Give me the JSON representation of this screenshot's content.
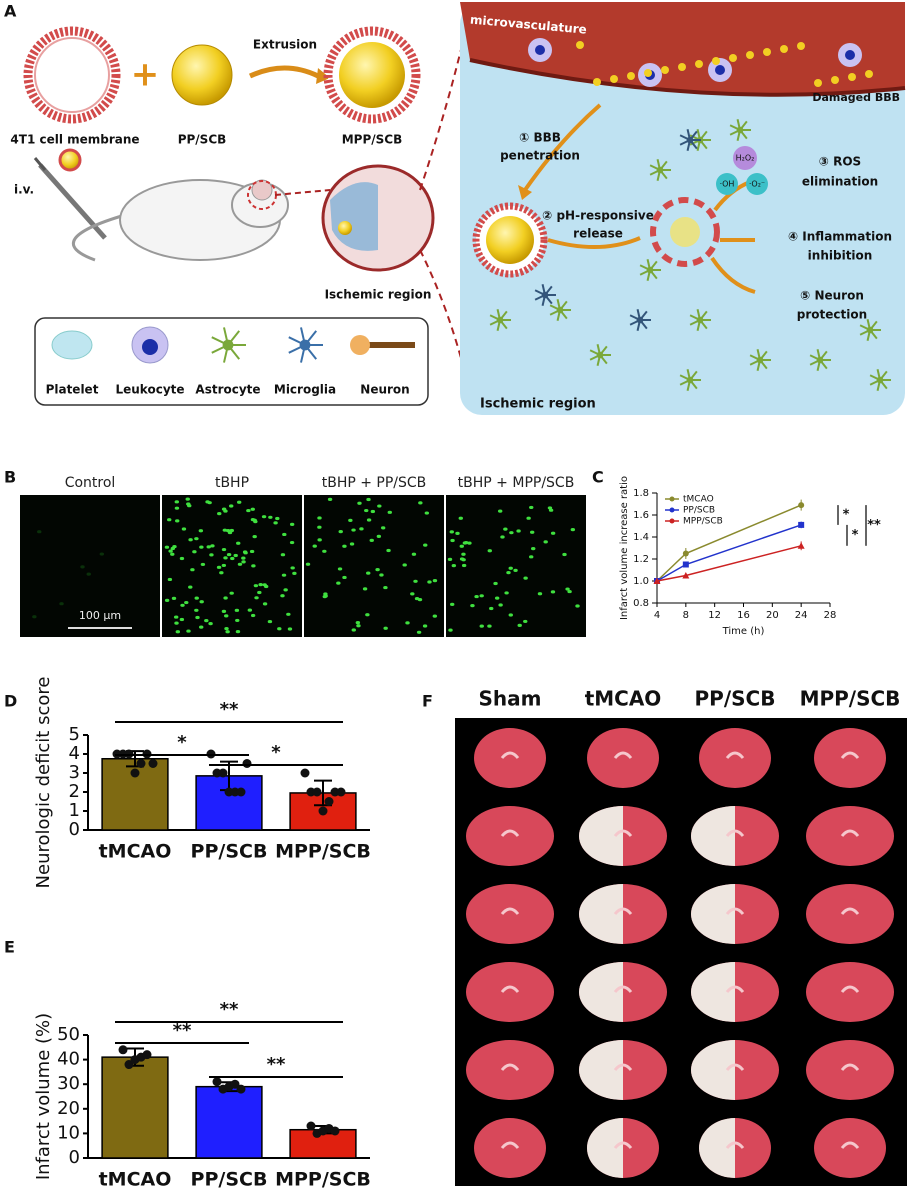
{
  "panel_labels": [
    "A",
    "B",
    "C",
    "D",
    "E",
    "F"
  ],
  "panel_a": {
    "membrane": "4T1 cell membrane",
    "core": "PP/SCB",
    "product": "MPP/SCB",
    "process": "Extrusion",
    "route": "i.v.",
    "region": "Ischemic region",
    "legend": [
      "Platelet",
      "Leukocyte",
      "Astrocyte",
      "Microglia",
      "Neuron"
    ],
    "vessel": "microvasculature",
    "barrier": "Damaged BBB",
    "steps": [
      [
        "① BBB",
        "penetration"
      ],
      [
        "② pH-responsive",
        "release"
      ],
      [
        "③ ROS",
        "elimination"
      ],
      [
        "④ Inflammation",
        "inhibition"
      ],
      [
        "⑤ Neuron",
        "protection"
      ]
    ],
    "species": [
      "H₂O₂",
      "·OH",
      "·O₂⁻"
    ],
    "region_right": "Ischemic region"
  },
  "panel_b": {
    "columns": [
      "Control",
      "tBHP",
      "tBHP + PP/SCB",
      "tBHP + MPP/SCB"
    ],
    "scale_bar": "100 μm"
  },
  "panel_f": {
    "columns": [
      "Sham",
      "tMCAO",
      "PP/SCB",
      "MPP/SCB"
    ]
  },
  "chart_data": [
    {
      "type": "line",
      "x_label": "Time (h)",
      "y_label": "Infarct volume increase ratio",
      "x": [
        4,
        8,
        24
      ],
      "xlim": [
        4,
        28
      ],
      "xticks": [
        4,
        8,
        12,
        16,
        20,
        24,
        28
      ],
      "ylim": [
        0.8,
        1.8
      ],
      "yticks": [
        0.8,
        {
          "value": 1.0,
          "label": "1.0"
        },
        1.2,
        1.4,
        1.6,
        1.8
      ],
      "series": [
        {
          "name": "tMCAO",
          "color": "#8a8a2e",
          "marker": "circle",
          "values": [
            1.0,
            1.25,
            1.69
          ],
          "errors": [
            0,
            0.05,
            0.05
          ]
        },
        {
          "name": "PP/SCB",
          "color": "#2233cc",
          "marker": "square",
          "values": [
            1.0,
            1.15,
            1.51
          ],
          "errors": [
            0,
            0.02,
            0.03
          ]
        },
        {
          "name": "MPP/SCB",
          "color": "#cc2222",
          "marker": "triangle",
          "values": [
            1.0,
            1.05,
            1.32
          ],
          "errors": [
            0,
            0.02,
            0.04
          ]
        }
      ],
      "annotations": [
        "*",
        "*",
        "**"
      ],
      "legend": "upper left"
    },
    {
      "type": "bar",
      "y_label": "Neurologic deficit score",
      "categories": [
        "tMCAO",
        "PP/SCB",
        "MPP/SCB"
      ],
      "values": [
        3.75,
        2.85,
        1.95
      ],
      "errors": [
        0.4,
        0.75,
        0.65
      ],
      "colors": [
        "#7f6a12",
        "#1f1fff",
        "#e0200f"
      ],
      "points": [
        [
          4,
          4,
          4,
          3,
          3.5,
          4,
          3.5
        ],
        [
          4,
          3,
          3,
          2,
          2,
          2,
          3.5
        ],
        [
          3,
          2,
          2,
          1,
          1.5,
          2,
          2
        ]
      ],
      "ylim": [
        0,
        5
      ],
      "yticks": [
        0,
        1,
        2,
        3,
        4,
        5
      ],
      "annotations": [
        "**",
        "*",
        "*"
      ]
    },
    {
      "type": "bar",
      "y_label": "Infarct volume (%)",
      "categories": [
        "tMCAO",
        "PP/SCB",
        "MPP/SCB"
      ],
      "values": [
        41,
        29,
        11.5
      ],
      "errors": [
        3.5,
        1.8,
        1.5
      ],
      "colors": [
        "#7f6a12",
        "#1f1fff",
        "#e0200f"
      ],
      "points": [
        [
          44,
          38,
          40,
          41,
          42
        ],
        [
          31,
          28,
          29,
          30,
          28
        ],
        [
          13,
          10,
          11,
          12,
          11
        ]
      ],
      "ylim": [
        0,
        50
      ],
      "yticks": [
        0,
        10,
        20,
        30,
        40,
        50
      ],
      "annotations": [
        "**",
        "**",
        "**"
      ]
    }
  ]
}
